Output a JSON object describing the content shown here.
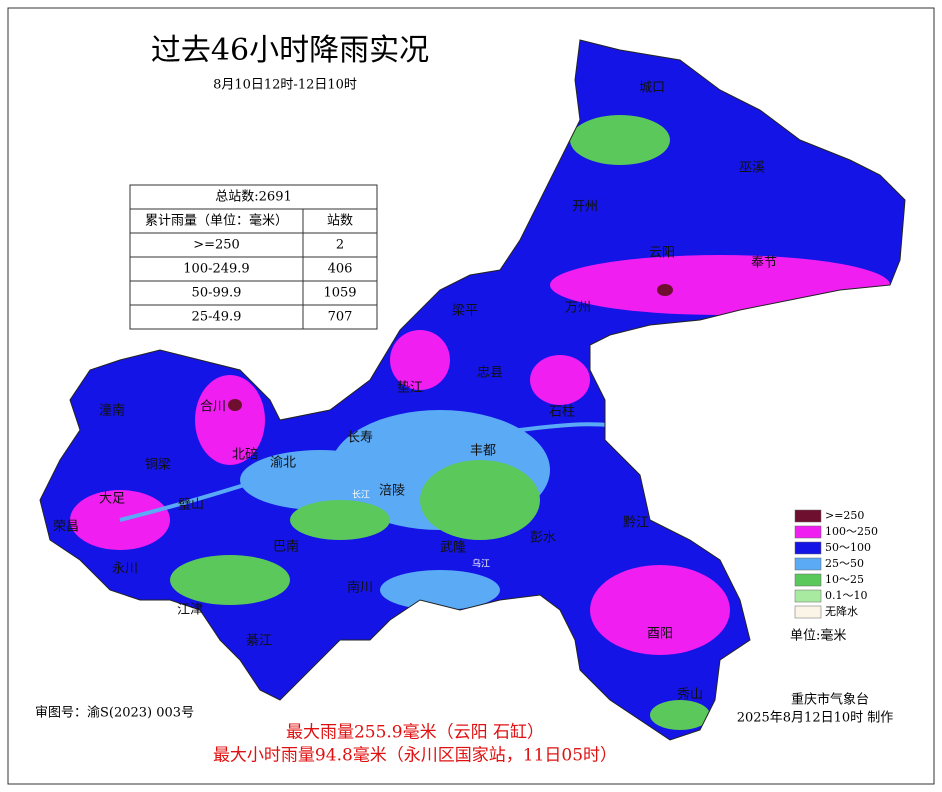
{
  "title": "过去46小时降雨实况",
  "subtitle": "8月10日12时-12日10时",
  "table": {
    "caption": "总站数:2691",
    "header": [
      "累计雨量（单位：毫米）",
      "站数"
    ],
    "rows": [
      [
        ">=250",
        "2"
      ],
      [
        "100-249.9",
        "406"
      ],
      [
        "50-99.9",
        "1059"
      ],
      [
        "25-49.9",
        "707"
      ]
    ]
  },
  "legend": {
    "items": [
      {
        "label": ">=250",
        "color": "#6e0f2f"
      },
      {
        "label": "100～250",
        "color": "#f01ef0"
      },
      {
        "label": "50～100",
        "color": "#1414e6"
      },
      {
        "label": "25～50",
        "color": "#5aaaf5"
      },
      {
        "label": "10～25",
        "color": "#5ac85a"
      },
      {
        "label": "0.1～10",
        "color": "#a8eba0"
      },
      {
        "label": "无降水",
        "color": "#fbf5e8"
      }
    ],
    "unit": "单位:毫米"
  },
  "places": [
    "城口",
    "巫溪",
    "开州",
    "云阳",
    "奉节",
    "万州",
    "梁平",
    "忠县",
    "垫江",
    "石柱",
    "长寿",
    "丰都",
    "涪陵",
    "武隆",
    "彭水",
    "黔江",
    "酉阳",
    "秀山",
    "合川",
    "潼南",
    "北碚",
    "渝北",
    "铜梁",
    "璧山",
    "大足",
    "荣昌",
    "永川",
    "江津",
    "巴南",
    "綦江",
    "南川"
  ],
  "rivers": [
    "长江",
    "乌江"
  ],
  "footer": {
    "approval": "审图号：渝S(2023) 003号",
    "agency": "重庆市气象台",
    "made": "2025年8月12日10时 制作",
    "max_rain": "最大雨量255.9毫米（云阳 石缸）",
    "max_hourly": "最大小时雨量94.8毫米（永川区国家站，11日05时）"
  }
}
